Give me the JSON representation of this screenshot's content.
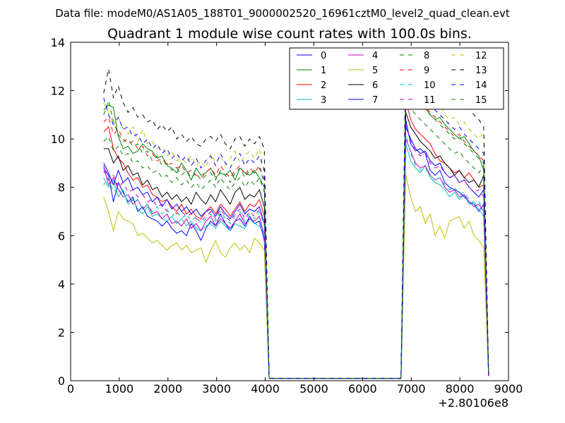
{
  "figure": {
    "suptitle": "Data file: modeM0/AS1A05_188T01_9000002520_16961cztM0_level2_quad_clean.evt"
  },
  "chart_data": {
    "type": "line",
    "title": "Quadrant 1 module wise count rates with 100.0s bins.",
    "xlabel": "",
    "ylabel": "",
    "x_offset_label": "+2.80106e8",
    "xlim": [
      0,
      9000
    ],
    "ylim": [
      0,
      14
    ],
    "x_ticks": [
      0,
      1000,
      2000,
      3000,
      4000,
      5000,
      6000,
      7000,
      8000,
      9000
    ],
    "y_ticks": [
      0,
      2,
      4,
      6,
      8,
      10,
      12,
      14
    ],
    "grid": false,
    "legend": {
      "location": "upper-right",
      "columns": 4
    },
    "x": [
      680,
      780,
      880,
      980,
      1080,
      1180,
      1280,
      1380,
      1480,
      1580,
      1680,
      1780,
      1880,
      1980,
      2080,
      2180,
      2280,
      2380,
      2480,
      2580,
      2680,
      2780,
      2880,
      2980,
      3080,
      3180,
      3280,
      3380,
      3480,
      3580,
      3680,
      3780,
      3880,
      3980,
      4080,
      6790,
      6890,
      6990,
      7090,
      7190,
      7290,
      7390,
      7490,
      7590,
      7690,
      7790,
      7890,
      7990,
      8090,
      8190,
      8290,
      8390,
      8490,
      8590
    ],
    "series": [
      {
        "name": "0",
        "color": "#0000ff",
        "dash": "solid",
        "values": [
          8.8,
          8.5,
          7.4,
          8.2,
          7.8,
          7.4,
          7.6,
          7.0,
          7.2,
          6.8,
          6.7,
          6.6,
          6.4,
          6.6,
          6.3,
          6.1,
          6.2,
          6.0,
          6.5,
          6.2,
          5.8,
          6.3,
          6.6,
          6.4,
          6.9,
          6.5,
          6.2,
          6.6,
          6.7,
          6.4,
          6.8,
          6.5,
          6.6,
          5.8,
          0.1,
          0.1,
          10.8,
          9.8,
          9.5,
          9.6,
          9.4,
          8.7,
          8.5,
          8.7,
          8.2,
          8.0,
          7.9,
          7.8,
          7.6,
          7.4,
          7.3,
          7.0,
          7.3,
          0.2
        ]
      },
      {
        "name": "1",
        "color": "#008000",
        "dash": "solid",
        "values": [
          11.2,
          11.4,
          11.3,
          10.1,
          9.6,
          9.7,
          9.4,
          9.5,
          9.8,
          9.6,
          9.5,
          9.2,
          9.3,
          8.9,
          8.8,
          8.6,
          9.0,
          8.7,
          8.3,
          8.8,
          8.5,
          8.6,
          8.8,
          8.4,
          8.6,
          8.5,
          8.7,
          8.3,
          8.8,
          8.6,
          8.5,
          8.7,
          8.4,
          8.0,
          0.1,
          0.1,
          12.3,
          11.9,
          11.7,
          11.5,
          11.3,
          11.0,
          10.8,
          10.9,
          10.6,
          10.4,
          10.2,
          10.0,
          10.1,
          9.8,
          9.5,
          9.3,
          8.7,
          0.3
        ]
      },
      {
        "name": "2",
        "color": "#ff0000",
        "dash": "solid",
        "values": [
          10.3,
          10.5,
          9.6,
          9.2,
          9.0,
          8.6,
          8.3,
          8.4,
          8.0,
          8.1,
          7.7,
          7.6,
          7.4,
          7.5,
          7.2,
          7.0,
          7.3,
          6.9,
          7.1,
          6.8,
          6.7,
          7.0,
          7.2,
          6.9,
          7.3,
          7.1,
          6.8,
          7.1,
          7.4,
          7.0,
          7.3,
          7.2,
          7.5,
          6.8,
          0.1,
          0.1,
          11.6,
          10.8,
          10.4,
          10.2,
          10.0,
          9.8,
          9.4,
          9.1,
          9.0,
          8.8,
          8.6,
          8.7,
          8.4,
          8.6,
          8.3,
          8.0,
          8.1,
          0.2
        ]
      },
      {
        "name": "3",
        "color": "#00bfbf",
        "dash": "solid",
        "values": [
          8.4,
          8.0,
          8.3,
          7.6,
          7.9,
          7.3,
          7.5,
          7.1,
          6.9,
          7.2,
          6.8,
          6.9,
          6.7,
          6.6,
          6.8,
          6.5,
          6.7,
          6.4,
          6.6,
          6.3,
          6.2,
          6.4,
          6.5,
          6.3,
          6.6,
          6.4,
          6.2,
          6.5,
          6.4,
          6.3,
          6.7,
          6.5,
          6.4,
          6.1,
          0.1,
          0.1,
          9.8,
          9.1,
          8.8,
          8.6,
          8.9,
          8.4,
          8.2,
          8.1,
          7.9,
          7.6,
          7.8,
          7.5,
          7.7,
          7.3,
          7.4,
          7.1,
          6.8,
          0.2
        ]
      },
      {
        "name": "4",
        "color": "#bf00bf",
        "dash": "solid",
        "values": [
          8.9,
          8.1,
          8.4,
          7.9,
          7.6,
          7.7,
          7.3,
          7.5,
          7.1,
          7.3,
          6.9,
          7.0,
          6.7,
          6.9,
          6.5,
          6.6,
          6.4,
          6.7,
          6.3,
          6.5,
          6.2,
          6.6,
          6.8,
          6.4,
          6.7,
          6.5,
          6.3,
          6.6,
          6.9,
          6.5,
          6.7,
          6.6,
          6.8,
          6.0,
          0.1,
          0.1,
          10.0,
          9.5,
          9.0,
          8.8,
          8.9,
          8.5,
          8.3,
          8.4,
          8.0,
          7.8,
          7.9,
          7.6,
          7.7,
          7.4,
          7.2,
          7.3,
          7.0,
          0.2
        ]
      },
      {
        "name": "5",
        "color": "#bfbf00",
        "dash": "solid",
        "values": [
          7.6,
          7.0,
          6.2,
          7.0,
          6.7,
          6.6,
          6.5,
          6.0,
          6.1,
          5.9,
          5.7,
          5.8,
          5.6,
          5.4,
          5.6,
          5.7,
          5.4,
          5.6,
          5.3,
          5.4,
          5.5,
          4.9,
          5.4,
          5.8,
          5.3,
          5.1,
          5.5,
          5.7,
          5.4,
          5.6,
          5.3,
          5.9,
          5.7,
          5.4,
          0.1,
          0.1,
          8.5,
          7.6,
          7.0,
          7.2,
          6.5,
          6.9,
          6.0,
          6.4,
          5.9,
          6.6,
          6.7,
          6.8,
          6.3,
          6.6,
          6.0,
          5.8,
          5.5,
          0.2
        ]
      },
      {
        "name": "6",
        "color": "#000000",
        "dash": "solid",
        "values": [
          9.6,
          9.6,
          9.0,
          9.3,
          8.7,
          8.9,
          8.5,
          8.6,
          8.1,
          8.3,
          7.9,
          8.0,
          7.6,
          7.8,
          7.5,
          7.7,
          7.4,
          7.6,
          7.3,
          7.8,
          7.5,
          7.3,
          7.7,
          7.4,
          7.9,
          7.6,
          7.3,
          7.8,
          8.0,
          7.5,
          7.7,
          7.6,
          7.9,
          7.2,
          0.1,
          0.1,
          11.1,
          10.5,
          10.2,
          9.9,
          9.7,
          9.5,
          9.2,
          9.3,
          9.0,
          8.8,
          8.5,
          8.7,
          8.4,
          8.2,
          8.3,
          8.0,
          8.5,
          0.2
        ]
      },
      {
        "name": "7",
        "color": "#0000ff",
        "dash": "solid",
        "values": [
          9.0,
          8.6,
          8.1,
          8.7,
          8.2,
          8.4,
          7.9,
          8.0,
          7.7,
          7.8,
          7.4,
          7.6,
          7.2,
          7.5,
          7.1,
          7.3,
          7.0,
          7.2,
          6.9,
          7.1,
          6.8,
          7.0,
          7.1,
          6.8,
          7.2,
          6.9,
          6.7,
          7.0,
          7.3,
          6.9,
          7.1,
          7.0,
          7.2,
          6.5,
          0.1,
          0.1,
          10.5,
          10.0,
          9.6,
          9.4,
          9.5,
          9.1,
          8.9,
          9.0,
          8.6,
          8.4,
          8.5,
          8.2,
          8.3,
          8.0,
          7.8,
          7.6,
          7.9,
          0.2
        ]
      },
      {
        "name": "8",
        "color": "#008000",
        "dash": "dashed",
        "values": [
          11.0,
          11.6,
          10.7,
          10.2,
          9.9,
          10.0,
          9.7,
          9.8,
          9.4,
          9.5,
          9.1,
          9.3,
          8.9,
          9.0,
          8.7,
          8.8,
          8.5,
          8.7,
          8.4,
          8.6,
          8.3,
          8.5,
          8.6,
          8.3,
          8.7,
          8.5,
          8.2,
          8.6,
          8.8,
          8.4,
          8.7,
          8.6,
          8.8,
          8.2,
          0.1,
          0.1,
          12.5,
          12.0,
          11.7,
          11.5,
          11.2,
          11.0,
          10.8,
          10.6,
          10.4,
          10.2,
          10.0,
          10.1,
          9.8,
          9.6,
          9.4,
          9.2,
          9.0,
          0.3
        ]
      },
      {
        "name": "9",
        "color": "#ff0000",
        "dash": "dashed",
        "values": [
          10.7,
          10.9,
          10.2,
          10.4,
          10.0,
          9.8,
          9.9,
          9.6,
          9.7,
          9.3,
          9.4,
          9.1,
          9.2,
          8.9,
          9.0,
          8.8,
          8.9,
          8.6,
          8.7,
          8.5,
          8.4,
          8.6,
          8.8,
          8.5,
          8.9,
          8.6,
          8.4,
          8.7,
          8.9,
          8.5,
          8.8,
          8.6,
          8.9,
          8.3,
          0.1,
          0.1,
          12.8,
          12.1,
          11.8,
          11.5,
          11.3,
          11.1,
          10.9,
          10.7,
          10.5,
          10.3,
          10.1,
          10.2,
          9.9,
          9.7,
          9.5,
          9.3,
          9.1,
          0.3
        ]
      },
      {
        "name": "10",
        "color": "#00bfbf",
        "dash": "dashed",
        "values": [
          8.1,
          8.4,
          7.8,
          8.0,
          7.6,
          7.7,
          7.4,
          7.5,
          7.1,
          7.3,
          7.0,
          7.2,
          6.9,
          7.1,
          6.8,
          7.0,
          6.7,
          6.9,
          6.6,
          6.8,
          6.5,
          6.7,
          6.9,
          6.6,
          7.0,
          6.7,
          6.5,
          6.8,
          7.0,
          6.6,
          6.9,
          6.7,
          7.0,
          6.4,
          0.1,
          0.1,
          10.2,
          9.4,
          8.9,
          8.7,
          8.8,
          8.5,
          8.3,
          8.4,
          8.1,
          7.9,
          8.0,
          7.7,
          7.8,
          7.5,
          7.3,
          7.4,
          7.1,
          0.2
        ]
      },
      {
        "name": "11",
        "color": "#bf00bf",
        "dash": "dashed",
        "values": [
          8.7,
          8.3,
          8.5,
          8.0,
          8.2,
          7.8,
          7.9,
          7.6,
          7.7,
          7.4,
          7.5,
          7.2,
          7.3,
          7.0,
          7.2,
          6.9,
          7.0,
          6.8,
          6.9,
          6.7,
          6.6,
          6.8,
          7.0,
          6.7,
          7.1,
          6.8,
          6.6,
          6.9,
          7.1,
          6.7,
          7.0,
          6.8,
          7.1,
          6.5,
          0.1,
          0.1,
          10.6,
          9.9,
          9.5,
          9.3,
          9.4,
          9.0,
          8.8,
          8.9,
          8.6,
          8.4,
          8.5,
          8.2,
          8.3,
          8.0,
          7.8,
          7.9,
          7.6,
          0.2
        ]
      },
      {
        "name": "12",
        "color": "#bfbf00",
        "dash": "dashed",
        "values": [
          11.5,
          11.1,
          10.6,
          10.9,
          10.4,
          10.2,
          10.5,
          9.9,
          10.4,
          9.8,
          9.9,
          9.6,
          9.7,
          9.3,
          9.5,
          9.1,
          9.2,
          9.0,
          9.3,
          8.9,
          9.1,
          8.8,
          9.4,
          9.0,
          9.3,
          8.9,
          9.2,
          9.5,
          9.0,
          9.3,
          9.5,
          9.2,
          9.6,
          8.6,
          0.1,
          0.1,
          13.1,
          12.6,
          12.4,
          12.0,
          11.8,
          11.6,
          11.3,
          11.4,
          11.0,
          10.8,
          10.9,
          10.6,
          10.7,
          10.4,
          10.2,
          10.0,
          10.3,
          0.3
        ]
      },
      {
        "name": "13",
        "color": "#000000",
        "dash": "dashed",
        "values": [
          11.9,
          12.9,
          11.7,
          12.2,
          11.5,
          11.1,
          11.3,
          10.9,
          11.0,
          10.7,
          10.8,
          10.4,
          10.6,
          10.3,
          10.5,
          10.0,
          10.2,
          9.9,
          10.1,
          9.8,
          9.7,
          10.0,
          10.1,
          9.9,
          10.2,
          9.8,
          9.6,
          10.0,
          10.1,
          9.7,
          10.0,
          9.8,
          10.1,
          9.6,
          0.1,
          0.1,
          13.5,
          13.3,
          13.7,
          13.4,
          13.1,
          12.9,
          12.6,
          12.7,
          12.3,
          12.0,
          11.8,
          11.9,
          11.5,
          11.3,
          11.0,
          10.8,
          10.5,
          0.3
        ]
      },
      {
        "name": "14",
        "color": "#0000ff",
        "dash": "dashed",
        "values": [
          11.7,
          11.0,
          10.6,
          10.9,
          10.4,
          10.5,
          10.1,
          10.2,
          9.8,
          10.0,
          9.6,
          9.8,
          9.4,
          9.6,
          9.2,
          9.4,
          9.1,
          9.3,
          8.9,
          9.2,
          8.8,
          9.1,
          9.3,
          8.9,
          9.4,
          9.0,
          8.8,
          9.2,
          9.4,
          8.9,
          9.2,
          9.0,
          9.3,
          8.7,
          0.1,
          0.1,
          12.9,
          12.4,
          12.1,
          11.8,
          11.6,
          11.4,
          11.2,
          11.0,
          10.8,
          10.6,
          10.4,
          10.5,
          10.2,
          10.0,
          9.8,
          9.6,
          9.4,
          0.3
        ]
      },
      {
        "name": "15",
        "color": "#008000",
        "dash": "dashed",
        "values": [
          9.9,
          10.1,
          9.5,
          9.7,
          9.3,
          9.4,
          9.0,
          9.1,
          8.8,
          8.9,
          8.6,
          8.7,
          8.4,
          8.5,
          8.2,
          8.4,
          8.1,
          8.3,
          8.0,
          8.2,
          7.9,
          8.1,
          8.3,
          8.0,
          8.4,
          8.1,
          7.9,
          8.2,
          8.4,
          8.0,
          8.3,
          8.1,
          8.4,
          7.8,
          0.1,
          0.1,
          11.9,
          11.3,
          11.0,
          10.8,
          10.6,
          10.4,
          10.2,
          10.0,
          9.8,
          9.6,
          9.4,
          9.5,
          9.2,
          9.0,
          8.8,
          8.6,
          8.9,
          0.3
        ]
      }
    ]
  }
}
